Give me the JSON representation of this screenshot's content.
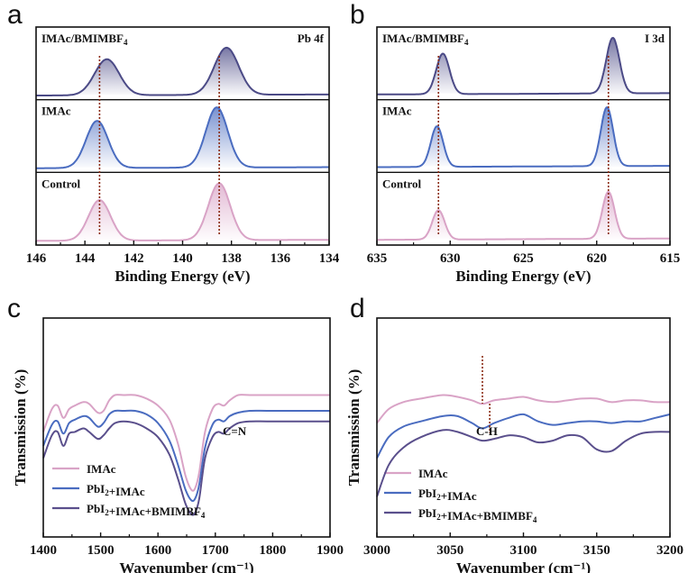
{
  "chart_data": [
    {
      "panel": "a",
      "type": "line",
      "xlabel": "Binding Energy (eV)",
      "xlim": [
        146,
        134
      ],
      "xticks": [
        "146",
        "144",
        "142",
        "140",
        "138",
        "136",
        "134"
      ],
      "corner_label": "Pb 4f",
      "guide_lines_x": [
        143.4,
        138.5
      ],
      "series": [
        {
          "name": "IMAc/BMIMBF4",
          "color": "#4b4a86",
          "base": 0.08,
          "peaks": [
            [
              143.1,
              0.55,
              0.5
            ],
            [
              138.2,
              0.72,
              0.5
            ]
          ]
        },
        {
          "name": "IMAc",
          "color": "#4a6cc0",
          "base": 0.08,
          "peaks": [
            [
              143.5,
              0.72,
              0.45
            ],
            [
              138.6,
              0.92,
              0.45
            ]
          ]
        },
        {
          "name": "Control",
          "color": "#d9a3c6",
          "base": 0.08,
          "peaks": [
            [
              143.4,
              0.62,
              0.45
            ],
            [
              138.5,
              0.87,
              0.45
            ]
          ]
        }
      ]
    },
    {
      "panel": "b",
      "type": "line",
      "xlabel": "Binding Energy (eV)",
      "xlim": [
        635,
        615
      ],
      "xticks": [
        "635",
        "630",
        "625",
        "620",
        "615"
      ],
      "corner_label": "I 3d",
      "guide_lines_x": [
        630.8,
        619.2
      ],
      "series": [
        {
          "name": "IMAc/BMIMBF4",
          "color": "#4b4a86",
          "base": 0.1,
          "peaks": [
            [
              630.5,
              0.62,
              0.45
            ],
            [
              618.9,
              0.85,
              0.45
            ]
          ]
        },
        {
          "name": "IMAc",
          "color": "#4a6cc0",
          "base": 0.1,
          "peaks": [
            [
              630.9,
              0.62,
              0.42
            ],
            [
              619.3,
              0.9,
              0.42
            ]
          ]
        },
        {
          "name": "Control",
          "color": "#d9a3c6",
          "base": 0.1,
          "peaks": [
            [
              630.8,
              0.45,
              0.42
            ],
            [
              619.2,
              0.72,
              0.42
            ]
          ]
        }
      ]
    },
    {
      "panel": "c",
      "type": "line",
      "xlabel": "Wavenumber (cm⁻¹)",
      "ylabel": "Transmission (%)",
      "xlim": [
        1400,
        1900
      ],
      "xticks": [
        "1400",
        "1500",
        "1600",
        "1700",
        "1800",
        "1900"
      ],
      "annotation": "C=N",
      "series": [
        {
          "name": "IMAc",
          "color": "#d9a3c6",
          "x": [
            1400,
            1415,
            1425,
            1435,
            1445,
            1455,
            1470,
            1480,
            1495,
            1505,
            1515,
            1525,
            1540,
            1560,
            1580,
            1600,
            1620,
            1635,
            1648,
            1658,
            1665,
            1672,
            1682,
            1695,
            1705,
            1715,
            1725,
            1740,
            1760,
            1800,
            1900
          ],
          "y": [
            0.45,
            0.58,
            0.6,
            0.53,
            0.58,
            0.6,
            0.62,
            0.61,
            0.56,
            0.57,
            0.63,
            0.66,
            0.66,
            0.66,
            0.64,
            0.6,
            0.52,
            0.38,
            0.2,
            0.12,
            0.13,
            0.22,
            0.45,
            0.58,
            0.61,
            0.6,
            0.63,
            0.66,
            0.66,
            0.66,
            0.66
          ]
        },
        {
          "name": "PbI₂+IMAc",
          "color": "#4a6cc0",
          "x": [
            1400,
            1415,
            1425,
            1435,
            1445,
            1455,
            1470,
            1480,
            1495,
            1505,
            1515,
            1525,
            1540,
            1560,
            1580,
            1600,
            1620,
            1635,
            1648,
            1658,
            1665,
            1672,
            1682,
            1695,
            1705,
            1715,
            1725,
            1740,
            1760,
            1800,
            1900
          ],
          "y": [
            0.37,
            0.49,
            0.51,
            0.44,
            0.5,
            0.52,
            0.54,
            0.53,
            0.48,
            0.5,
            0.55,
            0.57,
            0.57,
            0.57,
            0.55,
            0.5,
            0.4,
            0.26,
            0.12,
            0.06,
            0.07,
            0.15,
            0.36,
            0.49,
            0.52,
            0.51,
            0.54,
            0.56,
            0.57,
            0.57,
            0.57
          ]
        },
        {
          "name": "PbI₂+IMAc+BMIMBF₄",
          "color": "#5a4f8c",
          "x": [
            1400,
            1415,
            1425,
            1435,
            1445,
            1455,
            1470,
            1480,
            1495,
            1505,
            1515,
            1525,
            1540,
            1560,
            1580,
            1600,
            1620,
            1635,
            1648,
            1658,
            1665,
            1672,
            1682,
            1695,
            1705,
            1715,
            1725,
            1740,
            1760,
            1800,
            1900
          ],
          "y": [
            0.3,
            0.43,
            0.45,
            0.37,
            0.44,
            0.45,
            0.47,
            0.45,
            0.41,
            0.43,
            0.47,
            0.5,
            0.51,
            0.5,
            0.47,
            0.42,
            0.32,
            0.18,
            0.04,
            -0.02,
            -0.01,
            0.07,
            0.3,
            0.42,
            0.45,
            0.44,
            0.47,
            0.5,
            0.51,
            0.51,
            0.51
          ]
        }
      ]
    },
    {
      "panel": "d",
      "type": "line",
      "xlabel": "Wavenumber (cm⁻¹)",
      "ylabel": "Transmission (%)",
      "xlim": [
        3000,
        3200
      ],
      "xticks": [
        "3000",
        "3050",
        "3100",
        "3150",
        "3200"
      ],
      "annotation": "C-H",
      "guide_lines_x": [
        3072,
        3077
      ],
      "series": [
        {
          "name": "IMAc",
          "color": "#d9a3c6",
          "x": [
            3000,
            3008,
            3018,
            3030,
            3045,
            3055,
            3065,
            3072,
            3080,
            3090,
            3100,
            3110,
            3120,
            3130,
            3140,
            3150,
            3160,
            3170,
            3180,
            3190,
            3200
          ],
          "y": [
            0.5,
            0.58,
            0.62,
            0.64,
            0.66,
            0.65,
            0.63,
            0.61,
            0.63,
            0.64,
            0.65,
            0.63,
            0.62,
            0.63,
            0.64,
            0.64,
            0.62,
            0.63,
            0.63,
            0.62,
            0.62
          ]
        },
        {
          "name": "PbI₂+IMAc",
          "color": "#4a6cc0",
          "x": [
            3000,
            3008,
            3018,
            3030,
            3045,
            3055,
            3065,
            3072,
            3080,
            3090,
            3100,
            3110,
            3120,
            3130,
            3140,
            3150,
            3160,
            3170,
            3180,
            3190,
            3200
          ],
          "y": [
            0.3,
            0.42,
            0.48,
            0.51,
            0.54,
            0.54,
            0.5,
            0.47,
            0.5,
            0.53,
            0.55,
            0.51,
            0.49,
            0.5,
            0.51,
            0.51,
            0.5,
            0.51,
            0.51,
            0.53,
            0.55
          ]
        },
        {
          "name": "PbI₂+IMAc+BMIMBF₄",
          "color": "#5a4f8c",
          "x": [
            3000,
            3008,
            3018,
            3030,
            3045,
            3055,
            3065,
            3072,
            3080,
            3090,
            3100,
            3110,
            3120,
            3130,
            3140,
            3150,
            3160,
            3170,
            3180,
            3190,
            3200
          ],
          "y": [
            0.08,
            0.26,
            0.36,
            0.42,
            0.46,
            0.45,
            0.42,
            0.4,
            0.41,
            0.43,
            0.42,
            0.39,
            0.4,
            0.43,
            0.42,
            0.35,
            0.34,
            0.4,
            0.44,
            0.45,
            0.45
          ]
        }
      ]
    }
  ]
}
